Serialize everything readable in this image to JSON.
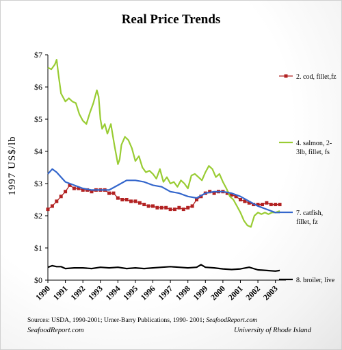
{
  "chart_data": {
    "type": "line",
    "title": "Real Price Trends",
    "ylabel": "1997 US$/lb",
    "xlabel": "",
    "ylim": [
      0,
      7
    ],
    "xlim": [
      1990,
      2003.6
    ],
    "y_ticks": [
      "$0",
      "$1",
      "$2",
      "$3",
      "$4",
      "$5",
      "$6",
      "$7"
    ],
    "x_ticks": [
      "1990",
      "1991",
      "1992",
      "1993",
      "1994",
      "1995",
      "1996",
      "1997",
      "1998",
      "1999",
      "2000",
      "2001",
      "2002",
      "2003"
    ],
    "grid": false,
    "legend_placement": "right",
    "series": [
      {
        "name": "2. cod, fillet,fz",
        "color": "#b22222",
        "marker": "square",
        "x": [
          1990.0,
          1990.25,
          1990.5,
          1990.75,
          1991.0,
          1991.25,
          1991.5,
          1991.75,
          1992.0,
          1992.25,
          1992.5,
          1992.75,
          1993.0,
          1993.25,
          1993.5,
          1993.75,
          1994.0,
          1994.25,
          1994.5,
          1994.75,
          1995.0,
          1995.25,
          1995.5,
          1995.75,
          1996.0,
          1996.25,
          1996.5,
          1996.75,
          1997.0,
          1997.25,
          1997.5,
          1997.75,
          1998.0,
          1998.25,
          1998.5,
          1998.75,
          1999.0,
          1999.25,
          1999.5,
          1999.75,
          2000.0,
          2000.25,
          2000.5,
          2000.75,
          2001.0,
          2001.25,
          2001.5,
          2001.75,
          2002.0,
          2002.25,
          2002.5,
          2002.75,
          2003.0,
          2003.25
        ],
        "values": [
          2.2,
          2.3,
          2.45,
          2.6,
          2.75,
          2.95,
          2.85,
          2.85,
          2.8,
          2.8,
          2.75,
          2.8,
          2.8,
          2.8,
          2.7,
          2.7,
          2.55,
          2.5,
          2.5,
          2.45,
          2.45,
          2.4,
          2.35,
          2.3,
          2.3,
          2.25,
          2.25,
          2.25,
          2.2,
          2.2,
          2.25,
          2.2,
          2.25,
          2.3,
          2.5,
          2.6,
          2.7,
          2.75,
          2.7,
          2.75,
          2.75,
          2.7,
          2.65,
          2.6,
          2.5,
          2.45,
          2.4,
          2.35,
          2.35,
          2.35,
          2.4,
          2.35,
          2.35,
          2.35
        ]
      },
      {
        "name": "4. salmon, 2-3lb, fillet, fs",
        "color": "#99cc33",
        "marker": "none",
        "x": [
          1990.0,
          1990.2,
          1990.4,
          1990.5,
          1990.6,
          1990.75,
          1991.0,
          1991.2,
          1991.4,
          1991.6,
          1991.8,
          1992.0,
          1992.2,
          1992.4,
          1992.6,
          1992.8,
          1992.9,
          1993.0,
          1993.1,
          1993.25,
          1993.4,
          1993.6,
          1993.8,
          1994.0,
          1994.1,
          1994.2,
          1994.4,
          1994.6,
          1994.8,
          1995.0,
          1995.2,
          1995.4,
          1995.6,
          1995.8,
          1996.0,
          1996.2,
          1996.4,
          1996.6,
          1996.8,
          1997.0,
          1997.2,
          1997.4,
          1997.6,
          1997.8,
          1998.0,
          1998.2,
          1998.4,
          1998.6,
          1998.8,
          1999.0,
          1999.2,
          1999.4,
          1999.6,
          1999.8,
          2000.0,
          2000.2,
          2000.4,
          2000.6,
          2000.8,
          2001.0,
          2001.2,
          2001.4,
          2001.6,
          2001.8,
          2002.0,
          2002.2,
          2002.4,
          2002.6,
          2002.8,
          2003.0,
          2003.25
        ],
        "values": [
          6.6,
          6.55,
          6.7,
          6.85,
          6.4,
          5.8,
          5.55,
          5.65,
          5.55,
          5.5,
          5.15,
          4.95,
          4.85,
          5.2,
          5.5,
          5.9,
          5.7,
          5.0,
          4.7,
          4.85,
          4.55,
          4.85,
          4.2,
          3.6,
          3.75,
          4.2,
          4.45,
          4.35,
          4.1,
          3.7,
          3.85,
          3.5,
          3.35,
          3.4,
          3.3,
          3.15,
          3.45,
          3.05,
          3.2,
          3.0,
          3.05,
          2.9,
          3.1,
          3.0,
          2.85,
          3.25,
          3.3,
          3.2,
          3.1,
          3.35,
          3.55,
          3.45,
          3.2,
          3.3,
          3.05,
          2.85,
          2.6,
          2.5,
          2.3,
          2.1,
          1.85,
          1.7,
          1.65,
          2.0,
          2.1,
          2.05,
          2.1,
          2.05,
          2.1,
          2.1,
          2.15
        ]
      },
      {
        "name": "7. catfish, fillet, fz",
        "color": "#3366cc",
        "marker": "none",
        "x": [
          1990.0,
          1990.25,
          1990.5,
          1990.75,
          1991.0,
          1991.5,
          1992.0,
          1992.5,
          1993.0,
          1993.5,
          1994.0,
          1994.5,
          1995.0,
          1995.5,
          1996.0,
          1996.5,
          1997.0,
          1997.5,
          1998.0,
          1998.5,
          1999.0,
          1999.5,
          2000.0,
          2000.5,
          2001.0,
          2001.5,
          2002.0,
          2002.5,
          2003.0,
          2003.25
        ],
        "values": [
          3.3,
          3.45,
          3.35,
          3.2,
          3.05,
          2.95,
          2.85,
          2.8,
          2.8,
          2.8,
          2.95,
          3.1,
          3.1,
          3.05,
          2.95,
          2.9,
          2.75,
          2.7,
          2.6,
          2.55,
          2.7,
          2.75,
          2.75,
          2.7,
          2.6,
          2.45,
          2.3,
          2.2,
          2.1,
          2.1
        ]
      },
      {
        "name": "8. broiler, live",
        "color": "#000000",
        "marker": "none",
        "x": [
          1990.0,
          1990.25,
          1990.5,
          1990.75,
          1991.0,
          1991.5,
          1992.0,
          1992.5,
          1993.0,
          1993.5,
          1994.0,
          1994.5,
          1995.0,
          1995.5,
          1996.0,
          1996.5,
          1997.0,
          1997.5,
          1998.0,
          1998.5,
          1998.75,
          1999.0,
          1999.5,
          2000.0,
          2000.5,
          2001.0,
          2001.5,
          2002.0,
          2002.5,
          2003.0,
          2003.25
        ],
        "values": [
          0.4,
          0.45,
          0.42,
          0.42,
          0.36,
          0.38,
          0.38,
          0.36,
          0.4,
          0.38,
          0.4,
          0.36,
          0.38,
          0.36,
          0.38,
          0.4,
          0.42,
          0.4,
          0.38,
          0.4,
          0.48,
          0.4,
          0.38,
          0.35,
          0.33,
          0.35,
          0.4,
          0.32,
          0.3,
          0.28,
          0.3
        ]
      }
    ]
  },
  "sources": {
    "prefix": "Sources: USDA, 1990-2001; Urner-Barry Publications, 1990- 2001; ",
    "italic_part": "SeafoodReport.com"
  },
  "footer": {
    "left": "SeafoodReport.com",
    "right": "University of Rhode Island"
  }
}
